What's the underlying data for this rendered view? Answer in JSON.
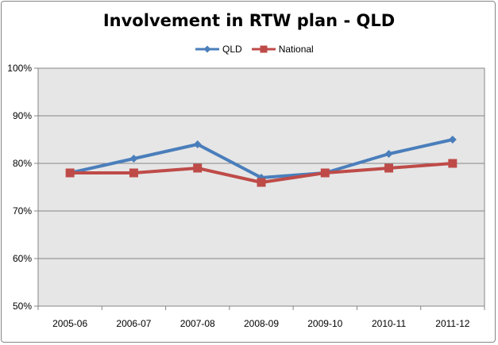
{
  "chart_data": {
    "type": "line",
    "title": "Involvement in RTW plan - QLD",
    "xlabel": "",
    "ylabel": "",
    "categories": [
      "2005-06",
      "2006-07",
      "2007-08",
      "2008-09",
      "2009-10",
      "2010-11",
      "2011-12"
    ],
    "series": [
      {
        "name": "QLD",
        "values": [
          78,
          81,
          84,
          77,
          78,
          82,
          85
        ],
        "color": "#4a7ebb",
        "marker": "diamond"
      },
      {
        "name": "National",
        "values": [
          78,
          78,
          79,
          76,
          78,
          79,
          80
        ],
        "color": "#be4b48",
        "marker": "square"
      }
    ],
    "ylim": [
      50,
      100
    ],
    "yticks": [
      50,
      60,
      70,
      80,
      90,
      100
    ],
    "ytick_labels": [
      "50%",
      "60%",
      "70%",
      "80%",
      "90%",
      "100%"
    ],
    "grid": "horizontal",
    "legend_position": "top",
    "plot_background": "#e6e6e6"
  }
}
